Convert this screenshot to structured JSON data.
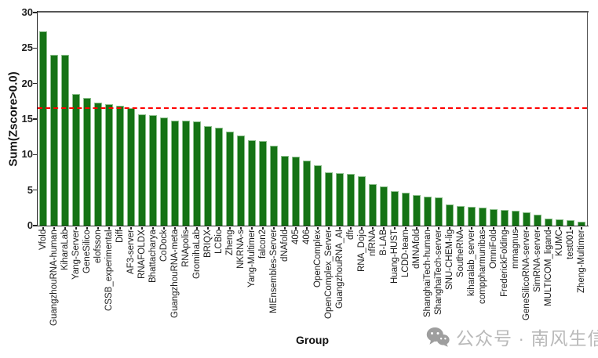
{
  "chart_data": {
    "type": "bar",
    "title": "",
    "xlabel": "Group",
    "ylabel": "Sum(Zscore>0.0)",
    "ylim": [
      0,
      30
    ],
    "yticks": [
      0,
      5,
      10,
      15,
      20,
      25,
      30
    ],
    "grid": false,
    "legend": "none",
    "bar_color": "#157315",
    "bar_edge_color": "#8cbf8c",
    "reference_line": {
      "y": 16.6,
      "color": "#ff0000",
      "style": "dashed"
    },
    "categories": [
      "Vfold",
      "GuangzhouRNA-human",
      "KiharaLab",
      "Yang-Server",
      "GeneSilico",
      "elofsson",
      "CSSB_experimental",
      "Diff",
      "AF3-server",
      "RNAFOLDX",
      "Bhattacharya",
      "CoDock",
      "GuangzhouRNA-meta",
      "RNApolis",
      "GromihaLab",
      "BRIQX",
      "LCBio",
      "Zheng",
      "NKRNA-s",
      "Yang-Multimer",
      "falcon2",
      "MIEnsembles-Server",
      "dNAfold",
      "405",
      "406",
      "OpenComplex",
      "OpenComplex_Server",
      "GuangzhouRNA_AI",
      "dfr",
      "RNA_Dojo",
      "nfRNA",
      "B-LAB",
      "Huang-HUST",
      "LCDD-team",
      "dMNAfold",
      "ShanghaiTech-human",
      "ShanghaiTech-server",
      "SNU-CHEM-lig",
      "SoutheRNA",
      "kiharalab_server",
      "comppharmunibas",
      "OmniFold",
      "FrederickFolding",
      "mmagnus",
      "GeneSilicoRNA-server",
      "SimRNA-server",
      "MULTICOM_ligand",
      "KUMC",
      "test001",
      "Zheng-Multimer"
    ],
    "values": [
      27.3,
      24.1,
      24.0,
      18.5,
      18.0,
      17.3,
      17.1,
      16.9,
      16.6,
      15.7,
      15.5,
      15.2,
      14.8,
      14.8,
      14.7,
      14.0,
      13.8,
      13.2,
      12.7,
      12.0,
      11.9,
      11.2,
      9.8,
      9.7,
      9.2,
      8.5,
      7.5,
      7.4,
      7.3,
      6.9,
      5.8,
      5.5,
      4.8,
      4.6,
      4.3,
      4.1,
      4.0,
      3.0,
      2.8,
      2.6,
      2.5,
      2.3,
      2.2,
      2.1,
      1.9,
      1.6,
      1.0,
      0.9,
      0.8,
      0.6
    ]
  },
  "watermark": {
    "icon": "wechat-icon",
    "text": "公众号 · 南风生信"
  }
}
